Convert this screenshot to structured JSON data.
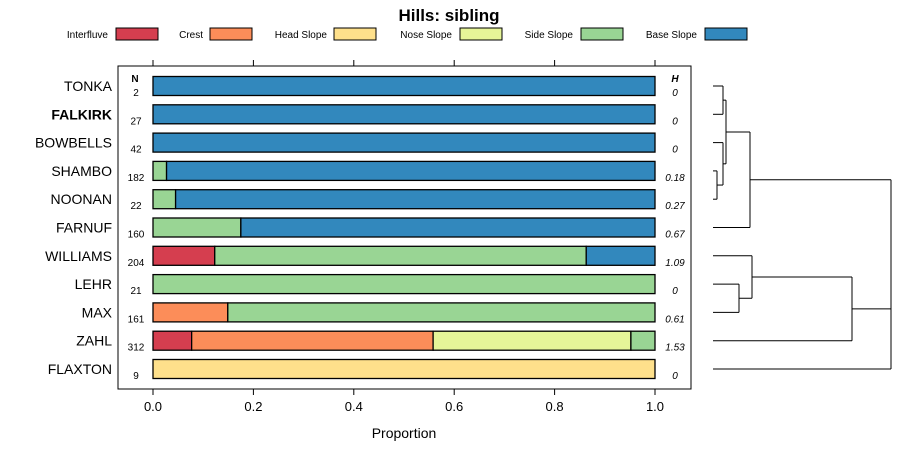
{
  "chart_data": {
    "type": "bar",
    "orientation": "horizontal",
    "stacked": true,
    "title": "Hills: sibling",
    "xlabel": "Proportion",
    "xlim": [
      0,
      1
    ],
    "xticks": [
      "0.0",
      "0.2",
      "0.4",
      "0.6",
      "0.8",
      "1.0"
    ],
    "n_header": "N",
    "h_header": "H",
    "legend": [
      {
        "name": "Interfluve",
        "color": "#D53E4F"
      },
      {
        "name": "Crest",
        "color": "#FC8D59"
      },
      {
        "name": "Head Slope",
        "color": "#FEE08B"
      },
      {
        "name": "Nose Slope",
        "color": "#E6F598"
      },
      {
        "name": "Side Slope",
        "color": "#99D594"
      },
      {
        "name": "Base Slope",
        "color": "#3288BD"
      }
    ],
    "categories": [
      {
        "name": "TONKA",
        "n": "2",
        "h": "0",
        "bold": false,
        "values": [
          0,
          0,
          0,
          0,
          0,
          1.0
        ]
      },
      {
        "name": "FALKIRK",
        "n": "27",
        "h": "0",
        "bold": true,
        "values": [
          0,
          0,
          0,
          0,
          0,
          1.0
        ]
      },
      {
        "name": "BOWBELLS",
        "n": "42",
        "h": "0",
        "bold": false,
        "values": [
          0,
          0,
          0,
          0,
          0,
          1.0
        ]
      },
      {
        "name": "SHAMBO",
        "n": "182",
        "h": "0.18",
        "bold": false,
        "values": [
          0,
          0,
          0,
          0,
          0.027,
          0.973
        ]
      },
      {
        "name": "NOONAN",
        "n": "22",
        "h": "0.27",
        "bold": false,
        "values": [
          0,
          0,
          0,
          0,
          0.045,
          0.955
        ]
      },
      {
        "name": "FARNUF",
        "n": "160",
        "h": "0.67",
        "bold": false,
        "values": [
          0,
          0,
          0,
          0,
          0.175,
          0.825
        ]
      },
      {
        "name": "WILLIAMS",
        "n": "204",
        "h": "1.09",
        "bold": false,
        "values": [
          0.123,
          0,
          0,
          0,
          0.74,
          0.137
        ]
      },
      {
        "name": "LEHR",
        "n": "21",
        "h": "0",
        "bold": false,
        "values": [
          0,
          0,
          0,
          0,
          1.0,
          0
        ]
      },
      {
        "name": "MAX",
        "n": "161",
        "h": "0.61",
        "bold": false,
        "values": [
          0,
          0.149,
          0,
          0,
          0.851,
          0
        ]
      },
      {
        "name": "ZAHL",
        "n": "312",
        "h": "1.53",
        "bold": false,
        "values": [
          0.077,
          0.481,
          0,
          0.394,
          0.048,
          0
        ]
      },
      {
        "name": "FLAXTON",
        "n": "9",
        "h": "0",
        "bold": false,
        "values": [
          0,
          0,
          1.0,
          0,
          0,
          0
        ]
      }
    ],
    "dendrogram": {
      "type": "dendrogram",
      "leaf_order": [
        "TONKA",
        "FALKIRK",
        "BOWBELLS",
        "SHAMBO",
        "NOONAN",
        "FARNUF",
        "WILLIAMS",
        "LEHR",
        "MAX",
        "ZAHL",
        "FLAXTON"
      ],
      "merges": [
        {
          "a": "SHAMBO",
          "b": "NOONAN",
          "height": 0.04
        },
        {
          "a": "TONKA",
          "b": "FALKIRK",
          "height": 0.1
        },
        {
          "a": "BOWBELLS",
          "b": "SHAMBO+NOONAN",
          "height": 0.1
        },
        {
          "a": "TONKA+FALKIRK",
          "b": "BOWBELLS+SHAMBO+NOONAN",
          "height": 0.13
        },
        {
          "a": "LEHR",
          "b": "MAX",
          "height": 0.3
        },
        {
          "a": "(TONKA..NOONAN)",
          "b": "FARNUF",
          "height": 0.23
        },
        {
          "a": "WILLIAMS",
          "b": "LEHR+MAX",
          "height": 0.37
        },
        {
          "a": "WILLIAMS+LEHR+MAX",
          "b": "ZAHL",
          "height": 1.2
        },
        {
          "a": "WILLIAMS+LEHR+MAX+ZAHL",
          "b": "FLAXTON",
          "height": 1.57
        },
        {
          "a": "(TONKA..FARNUF)",
          "b": "(WILLIAMS..FLAXTON)",
          "height": 1.6
        }
      ]
    }
  }
}
